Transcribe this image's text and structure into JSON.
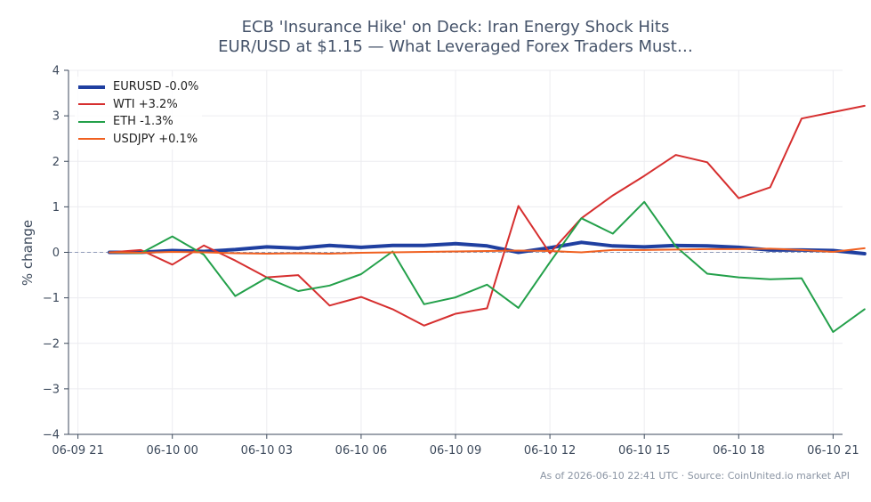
{
  "chart_data": {
    "type": "line",
    "title": "ECB 'Insurance Hike' on Deck: Iran Energy Shock Hits EUR/USD at $1.15 — What Leveraged Forex Traders Must…",
    "title_lines": [
      "ECB 'Insurance Hike' on Deck: Iran Energy Shock Hits",
      "EUR/USD at $1.15 — What Leveraged Forex Traders Must…"
    ],
    "xlabel": "",
    "ylabel": "% change",
    "xlim_hours": [
      -0.3,
      24.3
    ],
    "ylim": [
      -4,
      4
    ],
    "x_ticks": [
      {
        "hour": 0,
        "label": "06-09 21"
      },
      {
        "hour": 3,
        "label": "06-10 00"
      },
      {
        "hour": 6,
        "label": "06-10 03"
      },
      {
        "hour": 9,
        "label": "06-10 06"
      },
      {
        "hour": 12,
        "label": "06-10 09"
      },
      {
        "hour": 15,
        "label": "06-10 12"
      },
      {
        "hour": 18,
        "label": "06-10 15"
      },
      {
        "hour": 21,
        "label": "06-10 18"
      },
      {
        "hour": 24,
        "label": "06-10 21"
      }
    ],
    "y_ticks": [
      {
        "value": 4,
        "label": "4"
      },
      {
        "value": 3,
        "label": "3"
      },
      {
        "value": 2,
        "label": "2"
      },
      {
        "value": 1,
        "label": "1"
      },
      {
        "value": 0,
        "label": "0"
      },
      {
        "value": -1,
        "label": "−1"
      },
      {
        "value": -2,
        "label": "−2"
      },
      {
        "value": -3,
        "label": "−3"
      },
      {
        "value": -4,
        "label": "−4"
      }
    ],
    "zero_line": true,
    "grid": true,
    "legend_position": "top-left",
    "x_hours": [
      1,
      2,
      3,
      4,
      5,
      6,
      7,
      8,
      9,
      10,
      11,
      12,
      13,
      14,
      15,
      16,
      17,
      18,
      19,
      20,
      21,
      22,
      23,
      24,
      25
    ],
    "series": [
      {
        "name": "EURUSD -0.0%",
        "color": "#1f3fa0",
        "width": 4,
        "values": [
          0.0,
          0.0,
          0.04,
          0.02,
          0.06,
          0.12,
          0.09,
          0.15,
          0.11,
          0.15,
          0.15,
          0.19,
          0.14,
          0.0,
          0.1,
          0.22,
          0.14,
          0.12,
          0.15,
          0.14,
          0.11,
          0.05,
          0.05,
          0.04,
          -0.03
        ]
      },
      {
        "name": "WTI +3.2%",
        "color": "#d62f2f",
        "width": 2,
        "values": [
          0.0,
          0.05,
          -0.27,
          0.15,
          -0.18,
          -0.55,
          -0.5,
          -1.17,
          -0.98,
          -1.25,
          -1.61,
          -1.35,
          -1.23,
          1.02,
          -0.02,
          0.75,
          1.25,
          1.68,
          2.14,
          1.98,
          1.19,
          1.43,
          2.94,
          3.08,
          3.22
        ]
      },
      {
        "name": "ETH -1.3%",
        "color": "#23a04a",
        "width": 2,
        "values": [
          0.0,
          -0.02,
          0.35,
          -0.05,
          -0.96,
          -0.56,
          -0.85,
          -0.73,
          -0.48,
          0.02,
          -1.14,
          -0.99,
          -0.71,
          -1.22,
          -0.22,
          0.75,
          0.41,
          1.11,
          0.13,
          -0.47,
          -0.55,
          -0.59,
          -0.57,
          -1.75,
          -1.25
        ]
      },
      {
        "name": "USDJPY +0.1%",
        "color": "#f06020",
        "width": 2,
        "values": [
          0.0,
          -0.01,
          0.01,
          0.0,
          -0.02,
          -0.03,
          -0.02,
          -0.03,
          -0.01,
          0.0,
          0.01,
          0.02,
          0.03,
          0.04,
          0.03,
          0.0,
          0.05,
          0.05,
          0.06,
          0.07,
          0.07,
          0.08,
          0.05,
          0.01,
          0.09
        ]
      }
    ]
  },
  "footer": "As of 2026-06-10 22:41 UTC · Source: CoinUnited.io market API",
  "colors": {
    "axis": "#3d4a5c",
    "grid": "#ececf0",
    "zero_line": "#8f9ab8",
    "title": "#45536a"
  }
}
